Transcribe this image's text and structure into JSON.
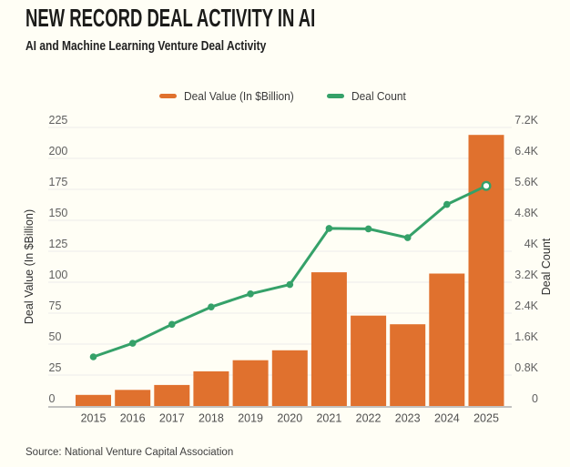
{
  "header": {
    "title": "NEW RECORD DEAL ACTIVITY IN AI",
    "subtitle": "AI and Machine Learning Venture Deal Activity"
  },
  "legend": [
    {
      "label": "Deal Value (In $Billion)",
      "color": "#E0712E"
    },
    {
      "label": "Deal Count",
      "color": "#35A169"
    }
  ],
  "source": "Source: National Venture Capital Association",
  "colors": {
    "bar": "#E0712E",
    "line": "#35A169",
    "background": "#FFFEF5",
    "gridline": "#ECECEA",
    "axis_line": "#C2C2C0",
    "title_text": "#1B1B19"
  },
  "chart_data": {
    "type": "bar",
    "subtype": "combo-bar-line-dual-axis",
    "categories": [
      "2015",
      "2016",
      "2017",
      "2018",
      "2019",
      "2020",
      "2021",
      "2022",
      "2023",
      "2024",
      "2025"
    ],
    "series": [
      {
        "name": "Deal Value (In $Billion)",
        "type": "bar",
        "axis": "left",
        "color": "#E0712E",
        "values": [
          9,
          13,
          17,
          28,
          37,
          45,
          108,
          73,
          66,
          107,
          219
        ]
      },
      {
        "name": "Deal Count",
        "type": "line",
        "axis": "right",
        "color": "#35A169",
        "values_thousands": [
          1.27,
          1.62,
          2.11,
          2.56,
          2.9,
          3.14,
          4.59,
          4.58,
          4.35,
          5.21,
          5.69
        ],
        "last_point_style": "open-circle"
      }
    ],
    "left_axis": {
      "label": "Deal Value (In $Billion)",
      "min": 0,
      "max": 225,
      "tick_step": 25,
      "ticks": [
        "0",
        "25",
        "50",
        "75",
        "100",
        "125",
        "150",
        "175",
        "200",
        "225"
      ]
    },
    "right_axis": {
      "label": "Deal Count",
      "min": 0,
      "max": 7200,
      "tick_step": 800,
      "ticks": [
        "0",
        "0.8K",
        "1.6K",
        "2.4K",
        "3.2K",
        "4K",
        "4.8K",
        "5.6K",
        "6.4K",
        "7.2K"
      ]
    },
    "grid": "horizontal",
    "legend_position": "top-center"
  }
}
